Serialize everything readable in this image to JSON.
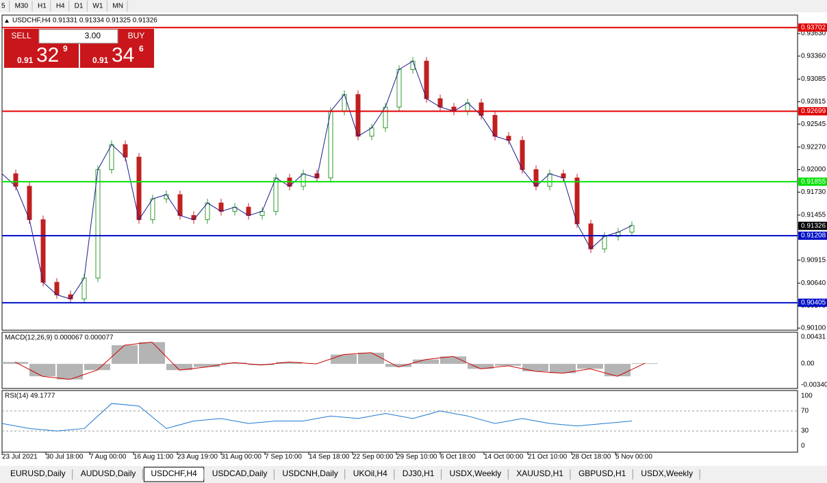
{
  "toolbar": {
    "timeframes": [
      "5",
      "M30",
      "H1",
      "H4",
      "D1",
      "W1",
      "MN"
    ]
  },
  "chart_header": "USDCHF,H4  0.91331 0.91334 0.91325 0.91326",
  "trade_panel": {
    "sell": "SELL",
    "buy": "BUY",
    "volume": "3.00",
    "bid": {
      "big": "0.91",
      "pips": "32",
      "frac": "9"
    },
    "ask": {
      "big": "0.91",
      "pips": "34",
      "frac": "6"
    }
  },
  "price_axis": {
    "ticks": [
      {
        "value": 0.9363,
        "label": "0.93630"
      },
      {
        "value": 0.9336,
        "label": "0.93360"
      },
      {
        "value": 0.93085,
        "label": "0.93085"
      },
      {
        "value": 0.92815,
        "label": "0.92815"
      },
      {
        "value": 0.92545,
        "label": "0.92545"
      },
      {
        "value": 0.9227,
        "label": "0.92270"
      },
      {
        "value": 0.92,
        "label": "0.92000"
      },
      {
        "value": 0.9173,
        "label": "0.91730"
      },
      {
        "value": 0.91455,
        "label": "0.91455"
      },
      {
        "value": 0.90915,
        "label": "0.90915"
      },
      {
        "value": 0.9064,
        "label": "0.90640"
      },
      {
        "value": 0.9037,
        "label": "0.90370"
      },
      {
        "value": 0.901,
        "label": "0.90100"
      }
    ]
  },
  "levels": [
    {
      "value": 0.93702,
      "color": "#e00000"
    },
    {
      "value": 0.92699,
      "color": "#e00000"
    },
    {
      "value": 0.91855,
      "color": "#00e000"
    },
    {
      "value": 0.91208,
      "color": "#0010c8"
    },
    {
      "value": 0.90405,
      "color": "#0010c8"
    }
  ],
  "current_price": 0.91326,
  "price_series": [
    0.9195,
    0.918,
    0.914,
    0.9065,
    0.905,
    0.9045,
    0.907,
    0.92,
    0.923,
    0.9215,
    0.914,
    0.9165,
    0.917,
    0.9145,
    0.914,
    0.916,
    0.915,
    0.9155,
    0.9145,
    0.915,
    0.919,
    0.918,
    0.9195,
    0.919,
    0.927,
    0.929,
    0.924,
    0.925,
    0.9275,
    0.932,
    0.933,
    0.9285,
    0.9275,
    0.927,
    0.928,
    0.9265,
    0.924,
    0.9235,
    0.92,
    0.918,
    0.9195,
    0.919,
    0.9135,
    0.9105,
    0.912,
    0.9125,
    0.9133
  ],
  "macd": {
    "label": "MACD(12,26,9) 0.000067 0.000077",
    "ticks": [
      {
        "value": 0.00431,
        "label": "0.00431"
      },
      {
        "value": 0,
        "label": "0.00"
      },
      {
        "value": -0.003405,
        "label": "-0.003405"
      }
    ],
    "values": [
      0.0003,
      -0.002,
      -0.0025,
      -0.001,
      0.003,
      0.0035,
      -0.001,
      -0.0005,
      0.0002,
      -0.0002,
      0.0003,
      0,
      0.0015,
      0.0018,
      -0.0005,
      0.0007,
      0.0012,
      -0.0008,
      -0.0003,
      -0.0012,
      -0.0015,
      -0.0008,
      -0.002,
      0.0001
    ]
  },
  "rsi": {
    "label": "RSI(14) 49.1777",
    "ticks": [
      100,
      70,
      30,
      0
    ],
    "values": [
      45,
      35,
      30,
      35,
      85,
      80,
      35,
      50,
      55,
      45,
      50,
      50,
      60,
      55,
      65,
      55,
      70,
      60,
      45,
      55,
      45,
      40,
      45,
      50
    ]
  },
  "time_axis": [
    "23 Jul 2021",
    "30 Jul 18:00",
    "7 Aug 00:00",
    "16 Aug 11:00",
    "23 Aug 19:00",
    "31 Aug 00:00",
    "7 Sep 10:00",
    "14 Sep 18:00",
    "22 Sep 00:00",
    "29 Sep 10:00",
    "6 Oct 18:00",
    "14 Oct 00:00",
    "21 Oct 10:00",
    "28 Oct 18:00",
    "5 Nov 00:00"
  ],
  "tabs": [
    "EURUSD,Daily",
    "AUDUSD,Daily",
    "USDCHF,H4",
    "USDCAD,Daily",
    "USDCNH,Daily",
    "UKOil,H4",
    "DJ30,H1",
    "USDX,Weekly",
    "XAUUSD,H1",
    "GBPUSD,H1",
    "USDX,Weekly"
  ],
  "active_tab": 2
}
